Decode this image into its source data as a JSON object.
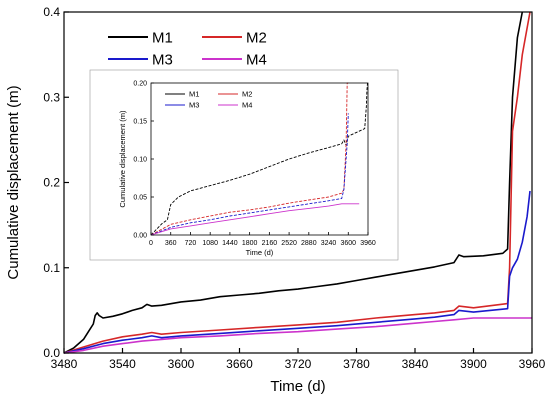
{
  "chart_data": [
    {
      "type": "line",
      "title": "",
      "xlabel": "Time (d)",
      "ylabel": "Cumulative displacement (m)",
      "xlim": [
        3480,
        3960
      ],
      "ylim": [
        0,
        0.4
      ],
      "x_ticks": [
        "3480",
        "3540",
        "3600",
        "3660",
        "3720",
        "3780",
        "3840",
        "3900",
        "3960"
      ],
      "y_ticks": [
        "0.0",
        "0.1",
        "0.2",
        "0.3",
        "0.4"
      ],
      "legend": {
        "placement": "top-left",
        "columns": 2
      },
      "grid": false,
      "series": [
        {
          "name": "M1",
          "color": "#000000",
          "x": [
            3480,
            3490,
            3500,
            3505,
            3510,
            3512,
            3514,
            3516,
            3520,
            3530,
            3540,
            3550,
            3560,
            3565,
            3570,
            3580,
            3600,
            3620,
            3640,
            3660,
            3680,
            3700,
            3720,
            3740,
            3760,
            3780,
            3800,
            3820,
            3840,
            3860,
            3880,
            3885,
            3890,
            3910,
            3930,
            3935,
            3937,
            3940,
            3945,
            3950
          ],
          "y": [
            0.0,
            0.006,
            0.016,
            0.025,
            0.034,
            0.044,
            0.047,
            0.044,
            0.041,
            0.043,
            0.046,
            0.05,
            0.053,
            0.057,
            0.055,
            0.056,
            0.06,
            0.062,
            0.066,
            0.068,
            0.07,
            0.073,
            0.075,
            0.078,
            0.081,
            0.085,
            0.089,
            0.093,
            0.097,
            0.101,
            0.106,
            0.115,
            0.113,
            0.114,
            0.117,
            0.122,
            0.2,
            0.3,
            0.37,
            0.4
          ]
        },
        {
          "name": "M2",
          "color": "#d62728",
          "x": [
            3480,
            3500,
            3520,
            3540,
            3560,
            3570,
            3580,
            3600,
            3640,
            3680,
            3720,
            3760,
            3800,
            3840,
            3860,
            3880,
            3885,
            3900,
            3935,
            3937,
            3940,
            3945,
            3950,
            3958
          ],
          "y": [
            0.0,
            0.007,
            0.014,
            0.019,
            0.022,
            0.024,
            0.022,
            0.024,
            0.027,
            0.03,
            0.033,
            0.036,
            0.041,
            0.045,
            0.047,
            0.05,
            0.055,
            0.053,
            0.058,
            0.1,
            0.26,
            0.3,
            0.35,
            0.4
          ]
        },
        {
          "name": "M3",
          "color": "#1a1acc",
          "x": [
            3480,
            3500,
            3520,
            3540,
            3560,
            3570,
            3580,
            3600,
            3640,
            3680,
            3720,
            3760,
            3800,
            3840,
            3860,
            3880,
            3885,
            3900,
            3935,
            3937,
            3940,
            3945,
            3950,
            3955,
            3958
          ],
          "y": [
            0.0,
            0.005,
            0.011,
            0.015,
            0.018,
            0.02,
            0.018,
            0.02,
            0.023,
            0.026,
            0.029,
            0.032,
            0.036,
            0.04,
            0.042,
            0.045,
            0.05,
            0.048,
            0.052,
            0.09,
            0.1,
            0.11,
            0.13,
            0.16,
            0.19
          ]
        },
        {
          "name": "M4",
          "color": "#cc33cc",
          "x": [
            3480,
            3500,
            3520,
            3540,
            3560,
            3580,
            3600,
            3640,
            3680,
            3720,
            3760,
            3800,
            3840,
            3860,
            3880,
            3900,
            3920,
            3940,
            3960
          ],
          "y": [
            0.0,
            0.003,
            0.008,
            0.011,
            0.014,
            0.016,
            0.018,
            0.02,
            0.023,
            0.025,
            0.028,
            0.031,
            0.035,
            0.037,
            0.039,
            0.041,
            0.041,
            0.041,
            0.041
          ]
        }
      ]
    },
    {
      "type": "line",
      "title": "",
      "xlabel": "Time (d)",
      "ylabel": "Cumulative displacement (m)",
      "xlim": [
        0,
        3960
      ],
      "ylim": [
        0,
        0.2
      ],
      "x_ticks": [
        "0",
        "360",
        "720",
        "1080",
        "1440",
        "1800",
        "2160",
        "2520",
        "2880",
        "3240",
        "3600",
        "3960"
      ],
      "y_ticks": [
        "0.00",
        "0.05",
        "0.10",
        "0.15",
        "0.20"
      ],
      "legend": {
        "placement": "top-left",
        "columns": 2
      },
      "grid": false,
      "series": [
        {
          "name": "M1",
          "color": "#000000",
          "x": [
            0,
            200,
            300,
            360,
            500,
            720,
            1080,
            1440,
            1800,
            2160,
            2520,
            2880,
            3240,
            3480,
            3520,
            3560,
            3600,
            3900,
            3930,
            3940,
            3950
          ],
          "y": [
            0.0,
            0.015,
            0.02,
            0.04,
            0.05,
            0.058,
            0.065,
            0.072,
            0.08,
            0.09,
            0.1,
            0.108,
            0.115,
            0.12,
            0.125,
            0.118,
            0.13,
            0.14,
            0.17,
            0.19,
            0.2
          ]
        },
        {
          "name": "M2",
          "color": "#d62728",
          "x": [
            0,
            360,
            720,
            1080,
            1440,
            1800,
            2160,
            2520,
            2880,
            3240,
            3480,
            3520,
            3560,
            3580,
            3600
          ],
          "y": [
            0.0,
            0.014,
            0.02,
            0.025,
            0.03,
            0.033,
            0.037,
            0.042,
            0.046,
            0.05,
            0.055,
            0.06,
            0.12,
            0.2,
            0.2
          ]
        },
        {
          "name": "M3",
          "color": "#1a1acc",
          "x": [
            0,
            360,
            720,
            1080,
            1440,
            1800,
            2160,
            2520,
            2880,
            3240,
            3480,
            3520,
            3560,
            3580,
            3600
          ],
          "y": [
            0.0,
            0.01,
            0.016,
            0.02,
            0.025,
            0.029,
            0.033,
            0.037,
            0.041,
            0.045,
            0.048,
            0.06,
            0.1,
            0.12,
            0.16
          ]
        },
        {
          "name": "M4",
          "color": "#cc33cc",
          "x": [
            0,
            360,
            720,
            1080,
            1440,
            1800,
            2160,
            2520,
            2880,
            3240,
            3480,
            3600,
            3800
          ],
          "y": [
            0.0,
            0.008,
            0.012,
            0.016,
            0.02,
            0.024,
            0.028,
            0.032,
            0.035,
            0.038,
            0.041,
            0.041,
            0.041
          ]
        }
      ]
    }
  ]
}
